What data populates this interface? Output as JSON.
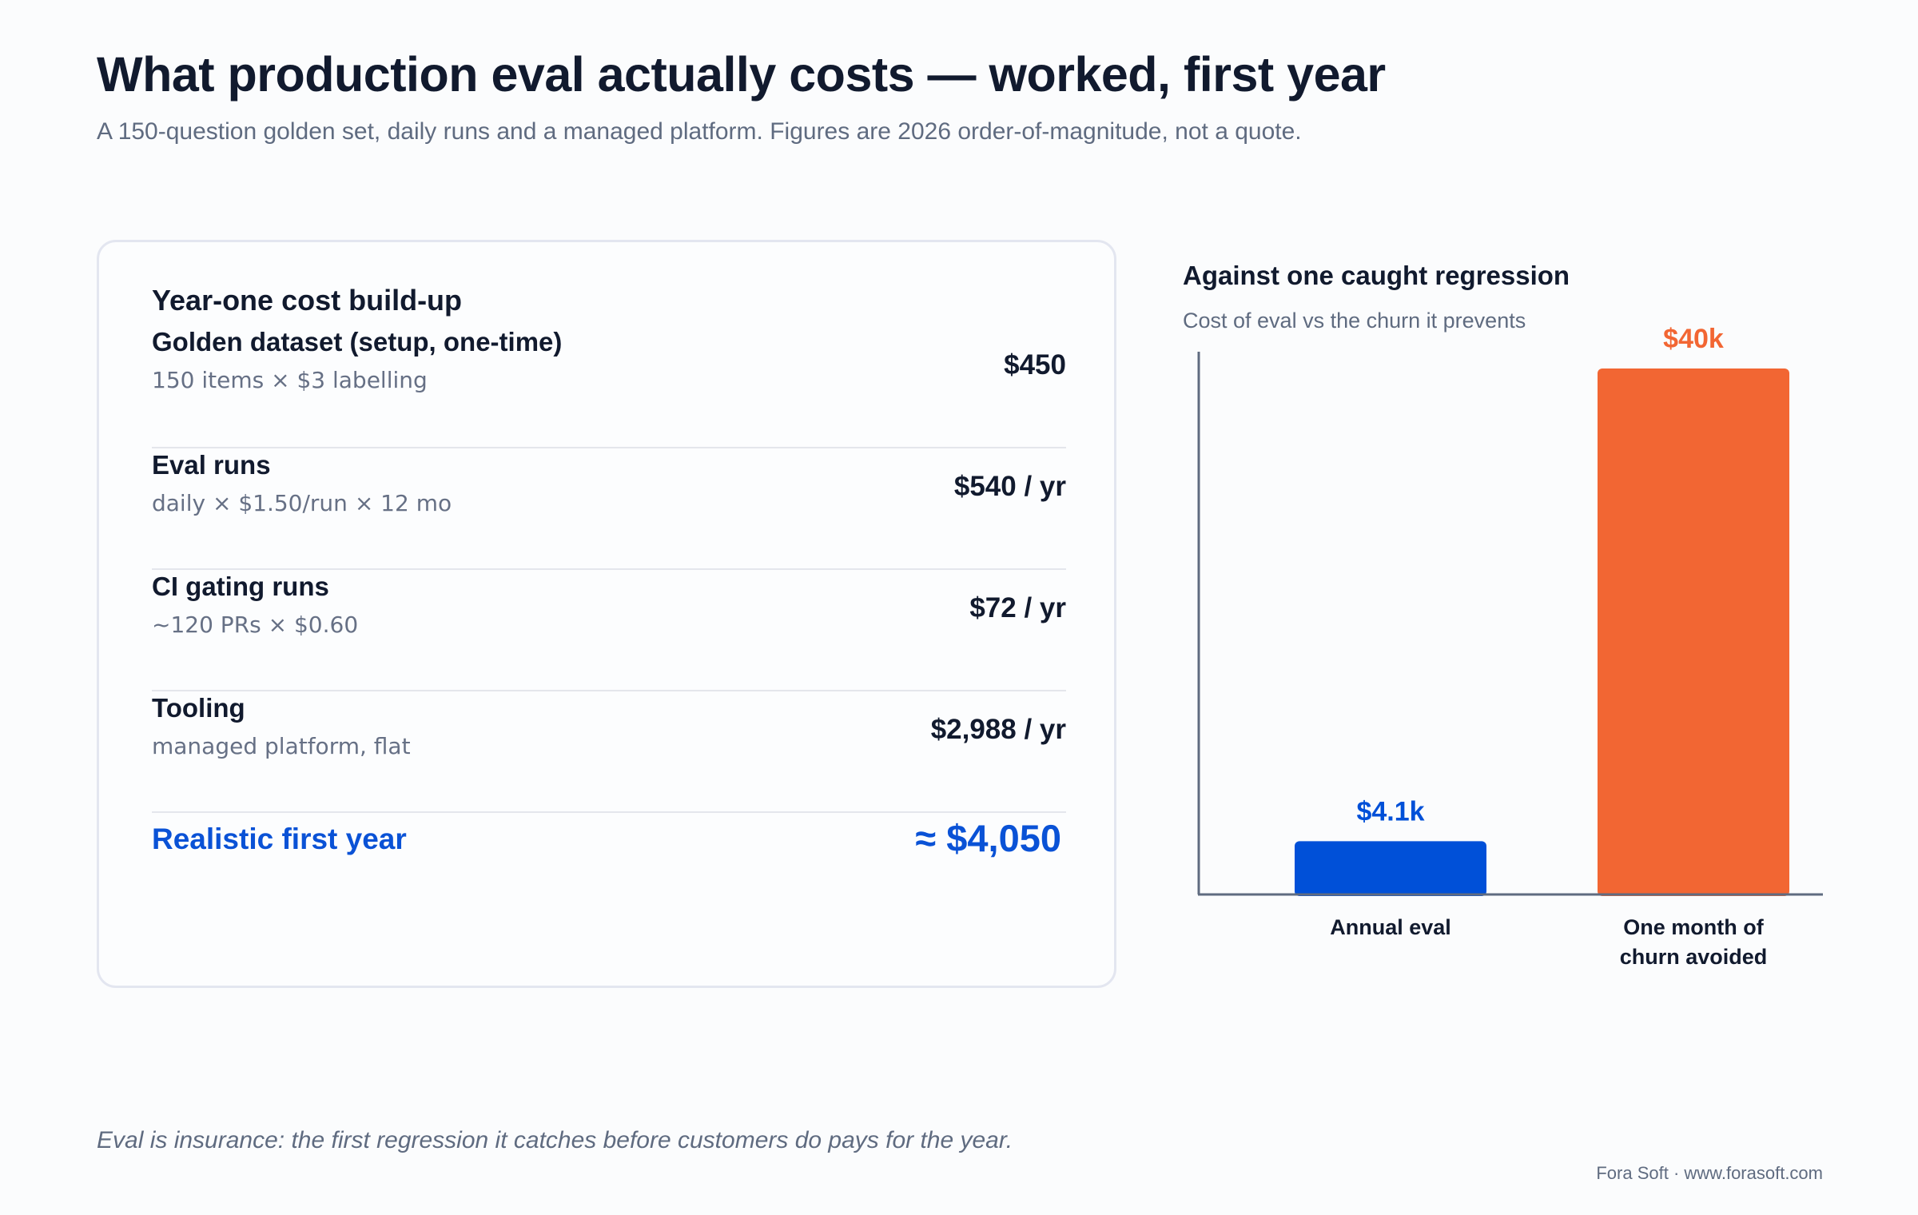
{
  "header": {
    "title": "What production eval actually costs — worked, first year",
    "subtitle": "A 150-question golden set, daily runs and a managed platform. Figures are 2026 order-of-magnitude, not a quote."
  },
  "cost_card": {
    "title": "Year-one cost build-up",
    "rows": [
      {
        "label": "Golden dataset (setup, one-time)",
        "detail": "150 items × $3 labelling",
        "amount": "$450"
      },
      {
        "label": "Eval runs",
        "detail": "daily × $1.50/run × 12 mo",
        "amount": "$540 / yr"
      },
      {
        "label": "CI gating runs",
        "detail": "~120 PRs × $0.60",
        "amount": "$72 / yr"
      },
      {
        "label": "Tooling",
        "detail": "managed platform, flat",
        "amount": "$2,988 / yr"
      }
    ],
    "total_label": "Realistic first year",
    "total_amount": "≈ $4,050"
  },
  "comparison": {
    "title": "Against one caught regression",
    "subtitle": "Cost of eval vs the churn it prevents"
  },
  "chart_data": {
    "type": "bar",
    "categories": [
      [
        "Annual eval"
      ],
      [
        "One month of",
        "churn avoided"
      ]
    ],
    "values": [
      4050,
      40000
    ],
    "data_labels": [
      "$4.1k",
      "$40k"
    ],
    "colors": [
      "#0050d8",
      "#f26633"
    ],
    "ylim": [
      0,
      40000
    ],
    "grid": false
  },
  "footer": {
    "note": "Eval is insurance: the first regression it catches before customers do pays for the year.",
    "credit": "Fora Soft · www.forasoft.com"
  }
}
